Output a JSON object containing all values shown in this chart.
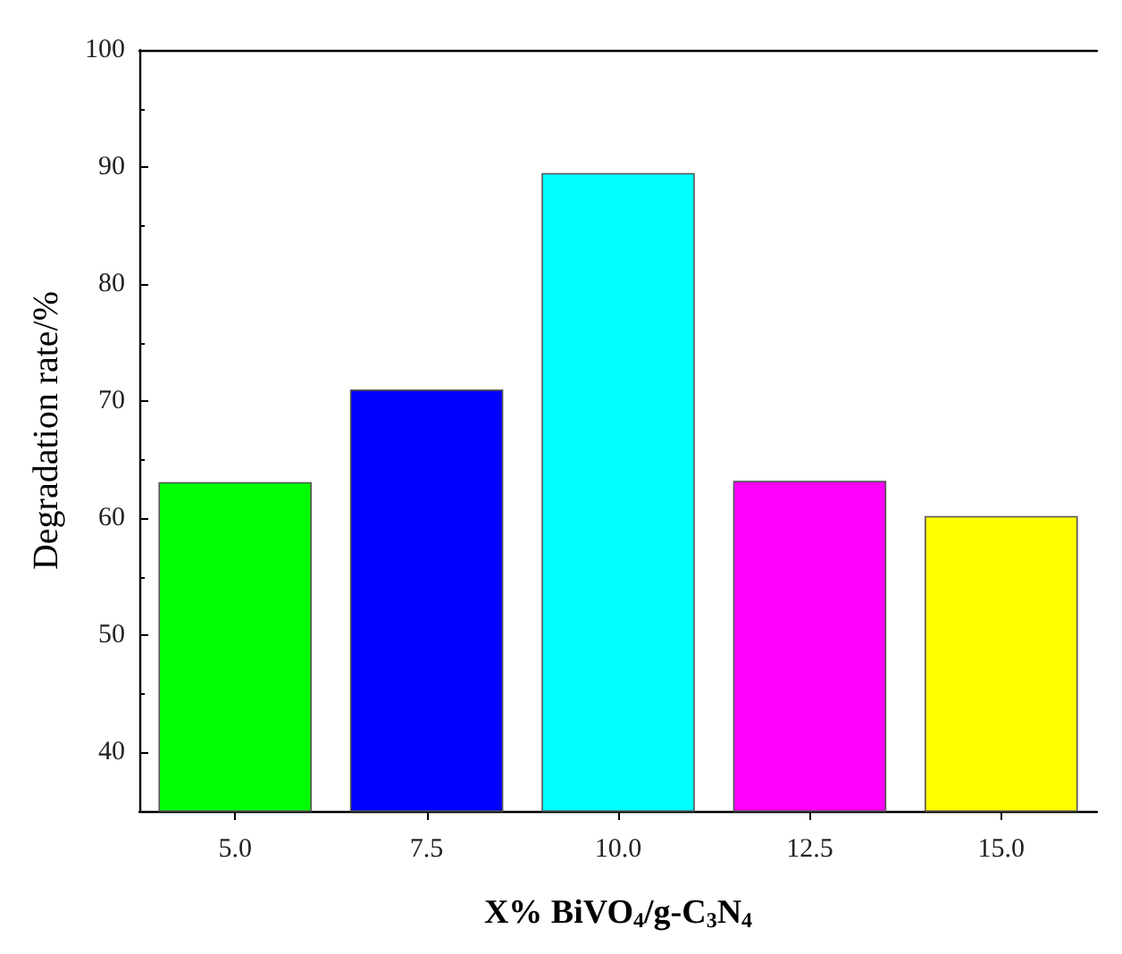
{
  "chart_data": {
    "type": "bar",
    "xlabel": "X% BiVO$_{4}$/g-C$_{3}$N$_{4}$",
    "ylabel": "Degradation rate/%",
    "categories": [
      "5.0",
      "7.5",
      "10.0",
      "12.5",
      "15.0"
    ],
    "values": [
      63.1,
      71.0,
      89.5,
      63.2,
      60.2
    ],
    "colors": [
      "#00ff00",
      "#0000ff",
      "#00ffff",
      "#ff00ff",
      "#ffff00"
    ],
    "ylim": [
      35,
      100
    ],
    "yticks": [
      40,
      50,
      60,
      70,
      80,
      90,
      100
    ],
    "grid": false
  }
}
